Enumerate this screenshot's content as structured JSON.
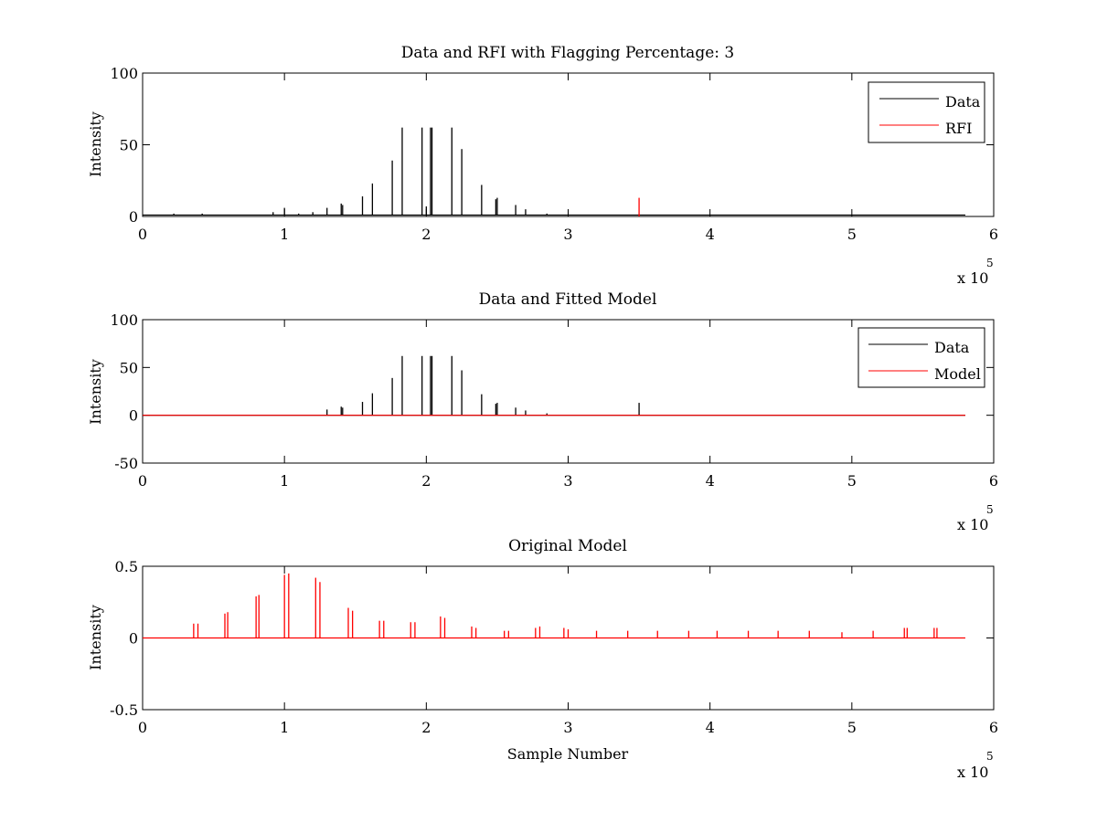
{
  "chart_data": [
    {
      "type": "line",
      "title": "Data and RFI with Flagging Percentage: 3",
      "xlabel": "",
      "ylabel": "Intensity",
      "xlim": [
        0,
        6
      ],
      "ylim": [
        0,
        100
      ],
      "x_ticks": [
        "0",
        "1",
        "2",
        "3",
        "4",
        "5",
        "6"
      ],
      "y_ticks": [
        "0",
        "50",
        "100"
      ],
      "x_multiplier": {
        "base": "x 10",
        "exponent": "5"
      },
      "legend": {
        "position": "top-right",
        "entries": [
          {
            "name": "Data",
            "color": "#000000"
          },
          {
            "name": "RFI",
            "color": "#ff0000"
          }
        ]
      },
      "series": [
        {
          "name": "Data",
          "color": "#000000",
          "baseline": 1,
          "spikes": [
            [
              0.22,
              2
            ],
            [
              0.42,
              2
            ],
            [
              0.92,
              3
            ],
            [
              1.0,
              6
            ],
            [
              1.1,
              2
            ],
            [
              1.2,
              3
            ],
            [
              1.3,
              6
            ],
            [
              1.4,
              9
            ],
            [
              1.41,
              8
            ],
            [
              1.55,
              14
            ],
            [
              1.62,
              23
            ],
            [
              1.76,
              39
            ],
            [
              1.83,
              62
            ],
            [
              1.97,
              62
            ],
            [
              2.0,
              7
            ],
            [
              2.03,
              62
            ],
            [
              2.04,
              62
            ],
            [
              2.18,
              62
            ],
            [
              2.25,
              47
            ],
            [
              2.39,
              22
            ],
            [
              2.49,
              12
            ],
            [
              2.5,
              13
            ],
            [
              2.63,
              8
            ],
            [
              2.7,
              5
            ],
            [
              2.85,
              2
            ],
            [
              3.0,
              1
            ]
          ]
        },
        {
          "name": "RFI",
          "color": "#ff0000",
          "spikes": [
            [
              3.5,
              13
            ]
          ]
        }
      ]
    },
    {
      "type": "line",
      "title": "Data and Fitted Model",
      "xlabel": "",
      "ylabel": "Intensity",
      "xlim": [
        0,
        6
      ],
      "ylim": [
        -50,
        100
      ],
      "x_ticks": [
        "0",
        "1",
        "2",
        "3",
        "4",
        "5",
        "6"
      ],
      "y_ticks": [
        "-50",
        "0",
        "50",
        "100"
      ],
      "x_multiplier": {
        "base": "x 10",
        "exponent": "5"
      },
      "legend": {
        "position": "top-right",
        "entries": [
          {
            "name": "Data",
            "color": "#000000"
          },
          {
            "name": "Model",
            "color": "#ff0000"
          }
        ]
      },
      "series": [
        {
          "name": "Data",
          "color": "#000000",
          "baseline": 0,
          "spikes": [
            [
              1.3,
              6
            ],
            [
              1.4,
              9
            ],
            [
              1.41,
              8
            ],
            [
              1.55,
              14
            ],
            [
              1.62,
              23
            ],
            [
              1.76,
              39
            ],
            [
              1.83,
              62
            ],
            [
              1.97,
              62
            ],
            [
              2.03,
              62
            ],
            [
              2.04,
              62
            ],
            [
              2.18,
              62
            ],
            [
              2.25,
              47
            ],
            [
              2.39,
              22
            ],
            [
              2.49,
              12
            ],
            [
              2.5,
              13
            ],
            [
              2.63,
              8
            ],
            [
              2.7,
              5
            ],
            [
              2.85,
              2
            ],
            [
              3.5,
              13
            ]
          ]
        },
        {
          "name": "Model",
          "color": "#ff0000",
          "baseline": 0,
          "spikes": []
        }
      ]
    },
    {
      "type": "line",
      "title": "Original Model",
      "xlabel": "Sample Number",
      "ylabel": "Intensity",
      "xlim": [
        0,
        6
      ],
      "ylim": [
        -0.5,
        0.5
      ],
      "x_ticks": [
        "0",
        "1",
        "2",
        "3",
        "4",
        "5",
        "6"
      ],
      "y_ticks": [
        "-0.5",
        "0",
        "0.5"
      ],
      "x_multiplier": {
        "base": "x 10",
        "exponent": "5"
      },
      "series": [
        {
          "name": "",
          "color": "#ff0000",
          "baseline": 0,
          "spikes": [
            [
              0.36,
              0.1
            ],
            [
              0.39,
              0.1
            ],
            [
              0.58,
              0.17
            ],
            [
              0.6,
              0.18
            ],
            [
              0.8,
              0.29
            ],
            [
              0.82,
              0.3
            ],
            [
              1.0,
              0.44
            ],
            [
              1.03,
              0.45
            ],
            [
              1.22,
              0.42
            ],
            [
              1.25,
              0.39
            ],
            [
              1.45,
              0.21
            ],
            [
              1.48,
              0.19
            ],
            [
              1.67,
              0.12
            ],
            [
              1.7,
              0.12
            ],
            [
              1.89,
              0.11
            ],
            [
              1.92,
              0.11
            ],
            [
              2.1,
              0.15
            ],
            [
              2.13,
              0.14
            ],
            [
              2.32,
              0.08
            ],
            [
              2.35,
              0.07
            ],
            [
              2.55,
              0.05
            ],
            [
              2.58,
              0.05
            ],
            [
              2.77,
              0.07
            ],
            [
              2.8,
              0.08
            ],
            [
              2.97,
              0.07
            ],
            [
              3.0,
              0.06
            ],
            [
              3.2,
              0.05
            ],
            [
              3.42,
              0.05
            ],
            [
              3.63,
              0.05
            ],
            [
              3.85,
              0.05
            ],
            [
              4.05,
              0.05
            ],
            [
              4.27,
              0.05
            ],
            [
              4.48,
              0.05
            ],
            [
              4.7,
              0.05
            ],
            [
              4.93,
              0.04
            ],
            [
              5.15,
              0.05
            ],
            [
              5.37,
              0.07
            ],
            [
              5.39,
              0.07
            ],
            [
              5.58,
              0.07
            ],
            [
              5.6,
              0.07
            ]
          ]
        }
      ]
    }
  ]
}
